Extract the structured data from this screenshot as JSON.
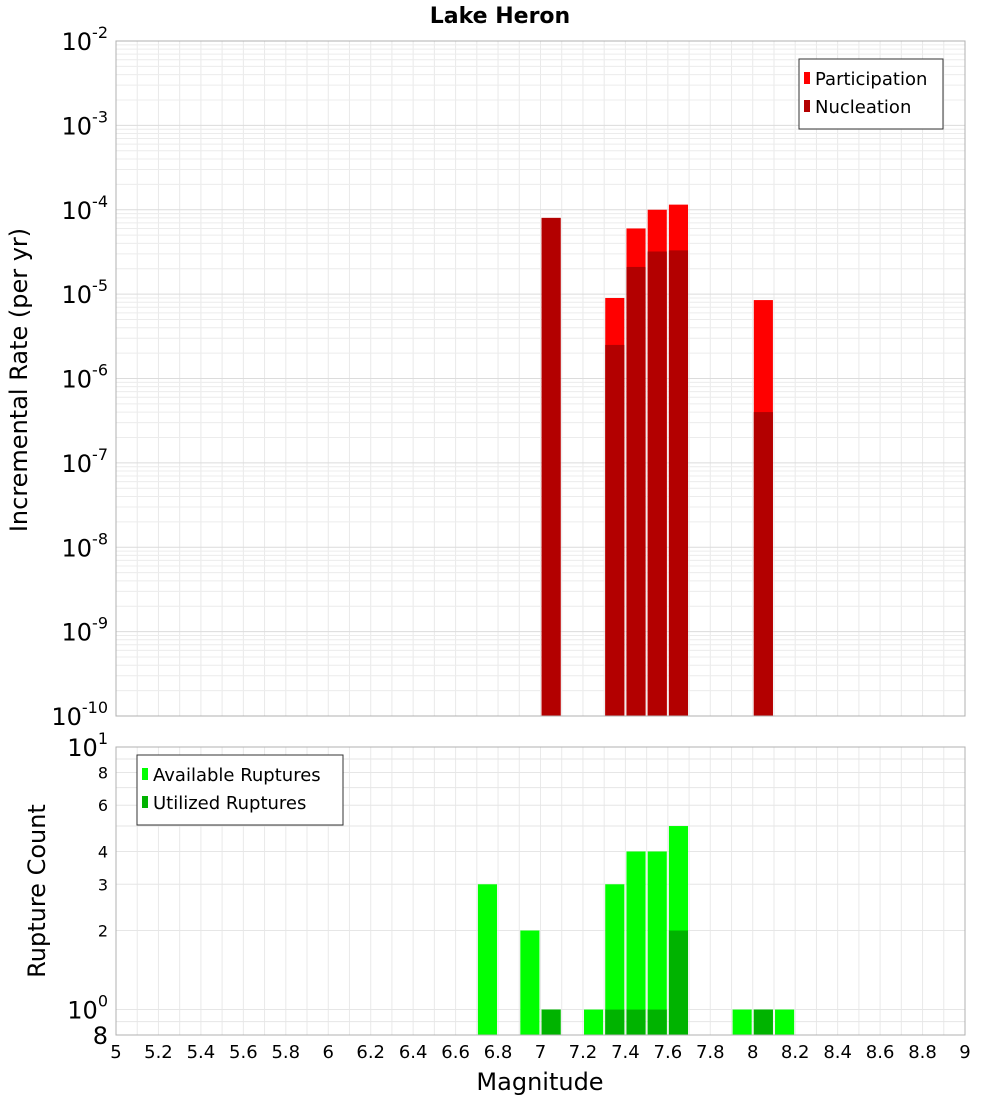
{
  "chart_data": [
    {
      "type": "bar",
      "title": "Lake Heron",
      "xlabel": "",
      "ylabel": "Incremental Rate (per yr)",
      "yscale": "log",
      "xlim": [
        5,
        9
      ],
      "ylim": [
        1e-10,
        0.01
      ],
      "y_tick_bases": [
        "10",
        "10",
        "10",
        "10",
        "10",
        "10",
        "10",
        "10",
        "10"
      ],
      "y_tick_exps": [
        "-10",
        "-9",
        "-8",
        "-7",
        "-6",
        "-5",
        "-4",
        "-3",
        "-2"
      ],
      "grid": true,
      "legend_position": "top-right",
      "bar_width": 0.09,
      "series": [
        {
          "name": "Participation",
          "color": "#ff0000",
          "x": [
            7.05,
            7.35,
            7.45,
            7.55,
            7.65,
            8.05
          ],
          "values": [
            8e-05,
            9e-06,
            6e-05,
            0.0001,
            0.000115,
            8.5e-06
          ]
        },
        {
          "name": "Nucleation",
          "color": "#b30000",
          "x": [
            7.05,
            7.35,
            7.45,
            7.55,
            7.65,
            8.05
          ],
          "values": [
            8e-05,
            2.5e-06,
            2.1e-05,
            3.2e-05,
            3.3e-05,
            4e-07
          ]
        }
      ]
    },
    {
      "type": "bar",
      "title": "",
      "xlabel": "Magnitude",
      "ylabel": "Rupture Count",
      "yscale": "log",
      "xlim": [
        5,
        9
      ],
      "ylim": [
        0.8,
        10
      ],
      "x_ticks": [
        "5",
        "5.2",
        "5.4",
        "5.6",
        "5.8",
        "6",
        "6.2",
        "6.4",
        "6.6",
        "6.8",
        "7",
        "7.2",
        "7.4",
        "7.6",
        "7.8",
        "8",
        "8.2",
        "8.4",
        "8.6",
        "8.8",
        "9"
      ],
      "y_minor_ticks": [
        "2",
        "3",
        "4",
        "6",
        "8"
      ],
      "y_major": {
        "top_base": "10",
        "top_exp": "1",
        "mid_base": "10",
        "mid_exp": "0",
        "bottom": "8"
      },
      "grid": true,
      "legend_position": "top-left",
      "bar_width": 0.09,
      "series": [
        {
          "name": "Available Ruptures",
          "color": "#00ff00",
          "x": [
            6.75,
            6.95,
            7.05,
            7.25,
            7.35,
            7.45,
            7.55,
            7.65,
            7.95,
            8.05,
            8.15
          ],
          "values": [
            3,
            2,
            1,
            1,
            3,
            4,
            4,
            5,
            1,
            1,
            1
          ]
        },
        {
          "name": "Utilized Ruptures",
          "color": "#00b300",
          "x": [
            7.05,
            7.35,
            7.45,
            7.55,
            7.65,
            8.05
          ],
          "values": [
            1,
            1,
            1,
            1,
            2,
            1
          ]
        }
      ]
    }
  ]
}
